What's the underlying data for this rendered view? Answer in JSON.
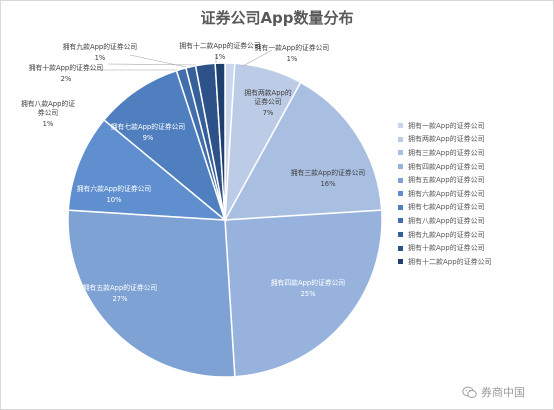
{
  "watermark": {
    "text": "券商中国",
    "icon": "wechat-icon"
  },
  "chart_data": {
    "type": "pie",
    "title": "证券公司App数量分布",
    "legend_position": "right",
    "slices": [
      {
        "label": "拥有一款App的证券公司",
        "value": 1,
        "value_label": "1%",
        "color": "#c9d6ec"
      },
      {
        "label": "拥有两款App的证券公司",
        "value": 7,
        "value_label": "7%",
        "color": "#bccbe6"
      },
      {
        "label": "拥有三款App的证券公司",
        "value": 16,
        "value_label": "16%",
        "color": "#a9bfe2"
      },
      {
        "label": "拥有四款App的证券公司",
        "value": 25,
        "value_label": "25%",
        "color": "#97b3dd"
      },
      {
        "label": "拥有五款App的证券公司",
        "value": 27,
        "value_label": "27%",
        "color": "#7ea2d4"
      },
      {
        "label": "拥有六款App的证券公司",
        "value": 10,
        "value_label": "10%",
        "color": "#5f8fcf"
      },
      {
        "label": "拥有七款App的证券公司",
        "value": 9,
        "value_label": "9%",
        "color": "#4f7fbe"
      },
      {
        "label": "拥有八款App的证券公司",
        "value": 1,
        "value_label": "1%",
        "color": "#426fac"
      },
      {
        "label": "拥有九款App的证券公司",
        "value": 1,
        "value_label": "1%",
        "color": "#36609a"
      },
      {
        "label": "拥有十款App的证券公司",
        "value": 2,
        "value_label": "2%",
        "color": "#2c5289"
      },
      {
        "label": "拥有十二款App的证券公司",
        "value": 1,
        "value_label": "1%",
        "color": "#1f3f6e"
      }
    ]
  }
}
